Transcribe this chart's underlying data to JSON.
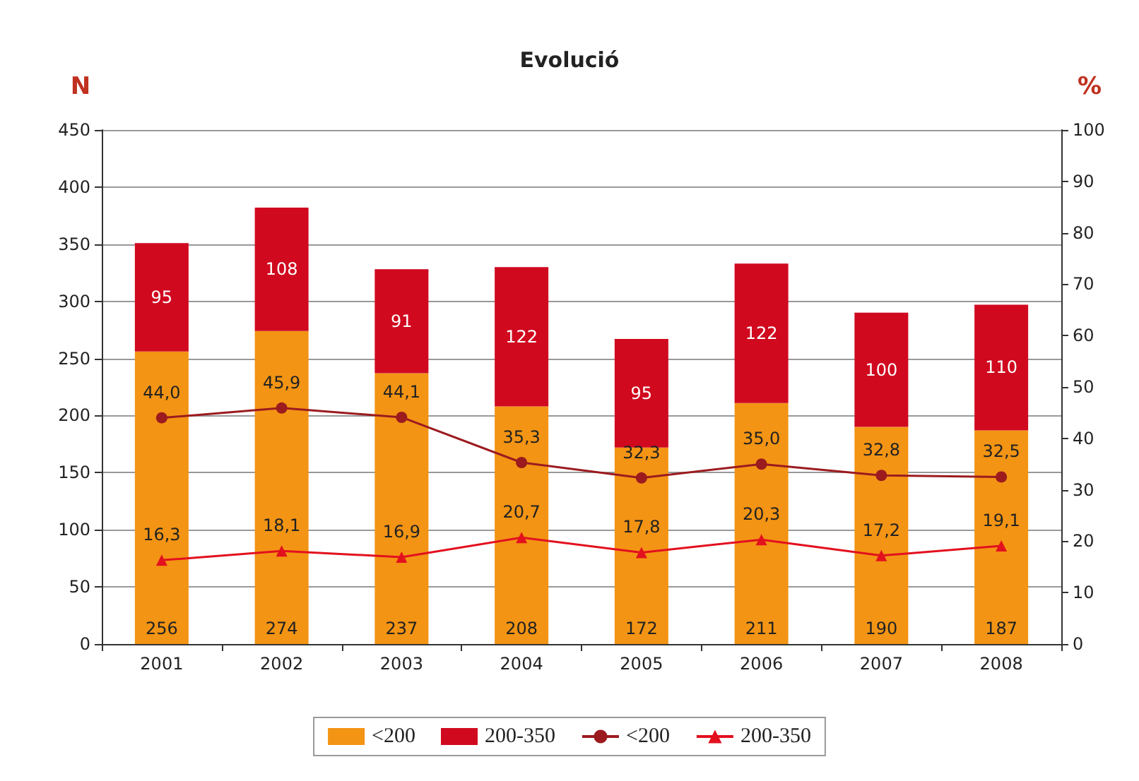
{
  "chart_data": {
    "type": "bar",
    "title": "Evolució",
    "ylabel": "N",
    "y2label": "%",
    "categories": [
      "2001",
      "2002",
      "2003",
      "2004",
      "2005",
      "2006",
      "2007",
      "2008"
    ],
    "stacked": true,
    "grid": "y",
    "legend": "bottom",
    "ylim": [
      0,
      450
    ],
    "yticks": [
      0,
      50,
      100,
      150,
      200,
      250,
      300,
      350,
      400,
      450
    ],
    "y2lim": [
      0,
      100
    ],
    "y2ticks": [
      0,
      10,
      20,
      30,
      40,
      50,
      60,
      70,
      80,
      90,
      100
    ],
    "series": [
      {
        "name": "<200",
        "color": "#f39414",
        "values": [
          256,
          274,
          237,
          208,
          172,
          211,
          190,
          187
        ],
        "value_labels": [
          "256",
          "274",
          "237",
          "208",
          "172",
          "211",
          "190",
          "187"
        ]
      },
      {
        "name": "200-350",
        "color": "#d0091f",
        "values": [
          95,
          108,
          91,
          122,
          95,
          122,
          100,
          110
        ],
        "value_labels": [
          "95",
          "108",
          "91",
          "122",
          "95",
          "122",
          "100",
          "110"
        ]
      },
      {
        "name": "<200",
        "type": "line",
        "axis": "y2",
        "marker": "circle",
        "color": "#9b1b1f",
        "values": [
          44.0,
          45.9,
          44.1,
          35.3,
          32.3,
          35.0,
          32.8,
          32.5
        ],
        "value_labels": [
          "44,0",
          "45,9",
          "44,1",
          "35,3",
          "32,3",
          "35,0",
          "32,8",
          "32,5"
        ]
      },
      {
        "name": "200-350",
        "type": "line",
        "axis": "y2",
        "marker": "triangle",
        "color": "#e3101e",
        "values": [
          16.3,
          18.1,
          16.9,
          20.7,
          17.8,
          20.3,
          17.2,
          19.1
        ],
        "value_labels": [
          "16,3",
          "18,1",
          "16,9",
          "20,7",
          "17,8",
          "20,3",
          "17,2",
          "19,1"
        ]
      }
    ]
  }
}
